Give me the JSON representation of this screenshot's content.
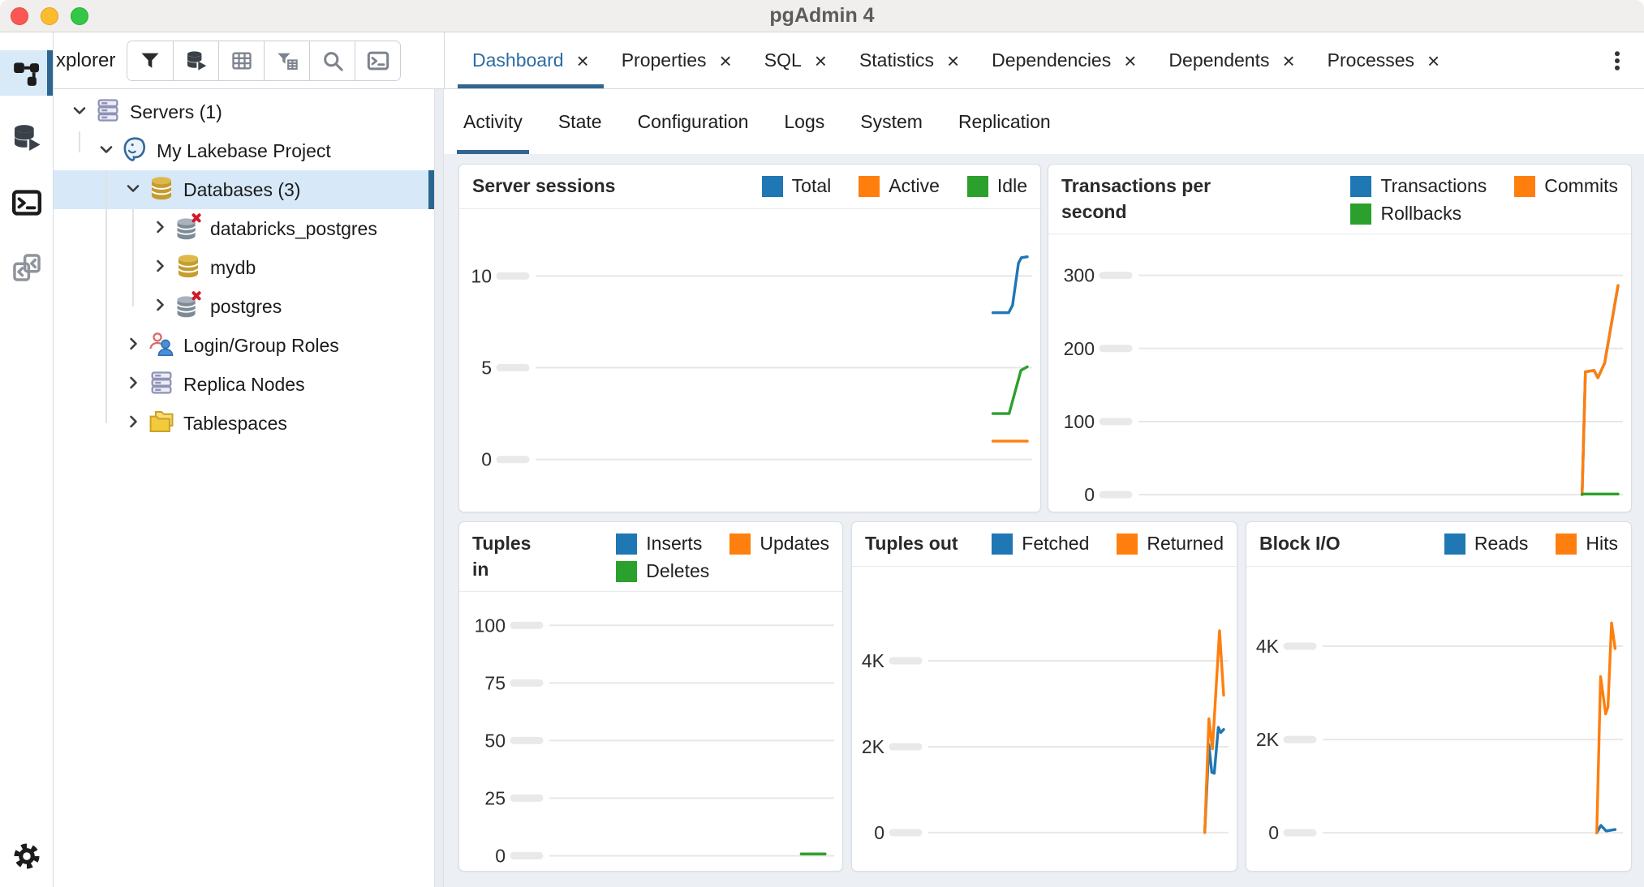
{
  "window": {
    "title": "pgAdmin 4",
    "controls": [
      "close-button",
      "minimize-button",
      "zoom-button"
    ]
  },
  "activity_bar": {
    "items": [
      {
        "name": "object-explorer",
        "icon": "tree-icon",
        "active": true
      },
      {
        "name": "query-tool",
        "icon": "query-tool-icon",
        "active": false
      },
      {
        "name": "psql-tool",
        "icon": "terminal-icon",
        "active": false
      },
      {
        "name": "schema-diff",
        "icon": "schema-diff-icon",
        "active": false
      },
      {
        "name": "preferences",
        "icon": "gear-icon",
        "active": false,
        "position": "bottom"
      }
    ]
  },
  "explorer": {
    "title": "xplorer",
    "toolbar": [
      "filter-icon",
      "query-tool-icon",
      "view-data-icon",
      "filtered-rows-icon",
      "search-icon",
      "psql-icon"
    ]
  },
  "tabs": {
    "items": [
      {
        "label": "Dashboard",
        "active": true
      },
      {
        "label": "Properties",
        "active": false
      },
      {
        "label": "SQL",
        "active": false
      },
      {
        "label": "Statistics",
        "active": false
      },
      {
        "label": "Dependencies",
        "active": false
      },
      {
        "label": "Dependents",
        "active": false
      },
      {
        "label": "Processes",
        "active": false
      }
    ],
    "close_glyph": "×",
    "overflow_menu_icon": "kebab-icon"
  },
  "subtabs": {
    "items": [
      {
        "label": "Activity",
        "active": true
      },
      {
        "label": "State",
        "active": false
      },
      {
        "label": "Configuration",
        "active": false
      },
      {
        "label": "Logs",
        "active": false
      },
      {
        "label": "System",
        "active": false
      },
      {
        "label": "Replication",
        "active": false
      }
    ]
  },
  "tree": {
    "items": [
      {
        "label": "Servers (1)",
        "level": 0,
        "expanded": true,
        "icon": "servers-icon",
        "selected": false
      },
      {
        "label": "My Lakebase Project",
        "level": 1,
        "expanded": true,
        "icon": "postgres-server-icon",
        "selected": false
      },
      {
        "label": "Databases (3)",
        "level": 2,
        "expanded": true,
        "icon": "database-gold-icon",
        "selected": true
      },
      {
        "label": "databricks_postgres",
        "level": 3,
        "expanded": false,
        "icon": "database-disconnected-icon",
        "selected": false
      },
      {
        "label": "mydb",
        "level": 3,
        "expanded": false,
        "icon": "database-gold-icon",
        "selected": false
      },
      {
        "label": "postgres",
        "level": 3,
        "expanded": false,
        "icon": "database-disconnected-icon",
        "selected": false
      },
      {
        "label": "Login/Group Roles",
        "level": 2,
        "expanded": false,
        "icon": "roles-icon",
        "selected": false
      },
      {
        "label": "Replica Nodes",
        "level": 2,
        "expanded": false,
        "icon": "servers-icon",
        "selected": false
      },
      {
        "label": "Tablespaces",
        "level": 2,
        "expanded": false,
        "icon": "tablespaces-icon",
        "selected": false
      }
    ]
  },
  "colors": {
    "accent_blue": "#326690",
    "active_tab_text": "#2d6ca2",
    "selection_bg": "#d7e9f8",
    "series_blue": "#1f77b4",
    "series_orange": "#ff7f0e",
    "series_green": "#2ca02c"
  },
  "chart_data": [
    {
      "type": "line",
      "title": "Server sessions",
      "title_width": null,
      "grid": true,
      "legend_position": "top-right",
      "legend_rows": [
        [
          "Total",
          "Active",
          "Idle"
        ]
      ],
      "yticks": {
        "values": [
          0,
          5,
          10
        ],
        "labels": [
          "0",
          "5",
          "10"
        ]
      },
      "ylim": [
        -2.4,
        13.2
      ],
      "series": [
        {
          "name": "Total",
          "color": "#1f77b4",
          "points": [
            [
              0.93,
              8
            ],
            [
              0.962,
              8
            ],
            [
              0.97,
              8.4
            ],
            [
              0.982,
              10.7
            ],
            [
              0.988,
              11
            ],
            [
              1,
              11.05
            ]
          ]
        },
        {
          "name": "Active",
          "color": "#ff7f0e",
          "points": [
            [
              0.93,
              1
            ],
            [
              1,
              1
            ]
          ]
        },
        {
          "name": "Idle",
          "color": "#2ca02c",
          "points": [
            [
              0.93,
              2.5
            ],
            [
              0.963,
              2.5
            ],
            [
              0.987,
              4.85
            ],
            [
              1,
              5.05
            ]
          ]
        }
      ]
    },
    {
      "type": "line",
      "title": "Transactions per second",
      "title_width": 205,
      "grid": true,
      "legend_position": "top-right",
      "legend_rows": [
        [
          "Transactions",
          "Commits"
        ],
        [
          "Rollbacks"
        ]
      ],
      "yticks": {
        "values": [
          0,
          100,
          200,
          300
        ],
        "labels": [
          "0",
          "100",
          "200",
          "300"
        ]
      },
      "ylim": [
        -12,
        345
      ],
      "series": [
        {
          "name": "Transactions",
          "color": "#1f77b4",
          "points": [
            [
              0.925,
              0
            ],
            [
              0.932,
              168
            ],
            [
              0.95,
              170
            ],
            [
              0.958,
              160
            ],
            [
              0.972,
              180
            ],
            [
              1,
              286
            ]
          ]
        },
        {
          "name": "Commits",
          "color": "#ff7f0e",
          "points": [
            [
              0.925,
              0
            ],
            [
              0.932,
              168
            ],
            [
              0.95,
              170
            ],
            [
              0.958,
              160
            ],
            [
              0.972,
              180
            ],
            [
              1,
              286
            ]
          ]
        },
        {
          "name": "Rollbacks",
          "color": "#2ca02c",
          "points": [
            [
              0.925,
              1
            ],
            [
              1,
              1
            ]
          ]
        }
      ]
    },
    {
      "type": "line",
      "title": "Tuples in",
      "title_width": 92,
      "grid": true,
      "legend_position": "top-right",
      "legend_rows": [
        [
          "Inserts",
          "Updates"
        ],
        [
          "Deletes"
        ]
      ],
      "yticks": {
        "values": [
          0,
          25,
          50,
          75,
          100
        ],
        "labels": [
          "0",
          "25",
          "50",
          "75",
          "100"
        ]
      },
      "ylim": [
        -3,
        111
      ],
      "series": [
        {
          "name": "Inserts",
          "color": "#1f77b4",
          "points": [
            [
              0.9,
              0.8
            ],
            [
              0.985,
              0.8
            ]
          ]
        },
        {
          "name": "Updates",
          "color": "#ff7f0e",
          "points": [
            [
              0.9,
              0.8
            ],
            [
              0.985,
              0.8
            ]
          ]
        },
        {
          "name": "Deletes",
          "color": "#2ca02c",
          "points": [
            [
              0.9,
              0.8
            ],
            [
              0.985,
              0.8
            ]
          ]
        }
      ]
    },
    {
      "type": "line",
      "title": "Tuples out",
      "title_width": null,
      "grid": true,
      "legend_position": "top-right",
      "legend_rows": [
        [
          "Fetched",
          "Returned"
        ]
      ],
      "yticks": {
        "values": [
          0,
          2000,
          4000
        ],
        "labels": [
          "0",
          "2K",
          "4K"
        ]
      },
      "ylim": [
        -700,
        6000
      ],
      "series": [
        {
          "name": "Fetched",
          "color": "#1f77b4",
          "points": [
            [
              0.936,
              20
            ],
            [
              0.95,
              2050
            ],
            [
              0.96,
              1400
            ],
            [
              0.968,
              1380
            ],
            [
              0.982,
              2450
            ],
            [
              0.99,
              2330
            ],
            [
              1,
              2400
            ]
          ]
        },
        {
          "name": "Returned",
          "color": "#ff7f0e",
          "points": [
            [
              0.936,
              0
            ],
            [
              0.95,
              2650
            ],
            [
              0.962,
              1950
            ],
            [
              0.986,
              4700
            ],
            [
              1,
              3200
            ]
          ]
        }
      ]
    },
    {
      "type": "line",
      "title": "Block I/O",
      "title_width": null,
      "grid": true,
      "legend_position": "top-right",
      "legend_rows": [
        [
          "Reads",
          "Hits"
        ]
      ],
      "yticks": {
        "values": [
          0,
          2000,
          4000
        ],
        "labels": [
          "0",
          "2K",
          "4K"
        ]
      },
      "ylim": [
        -640,
        5530
      ],
      "series": [
        {
          "name": "Reads",
          "color": "#1f77b4",
          "points": [
            [
              0.928,
              0
            ],
            [
              0.942,
              160
            ],
            [
              0.96,
              40
            ],
            [
              0.99,
              70
            ]
          ]
        },
        {
          "name": "Hits",
          "color": "#ff7f0e",
          "points": [
            [
              0.928,
              0
            ],
            [
              0.941,
              3350
            ],
            [
              0.958,
              2550
            ],
            [
              0.966,
              2700
            ],
            [
              0.978,
              4500
            ],
            [
              0.99,
              3950
            ]
          ]
        }
      ]
    }
  ]
}
